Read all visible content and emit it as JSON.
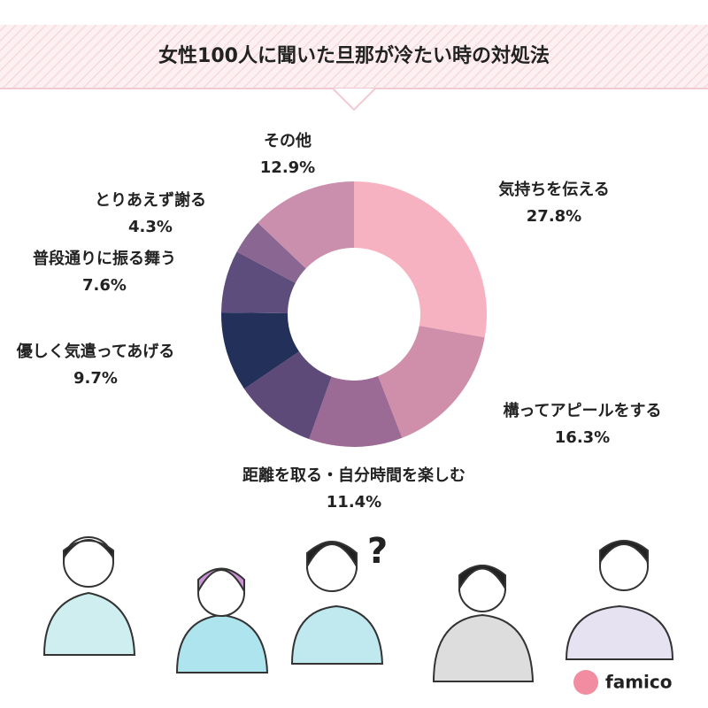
{
  "chart_data": {
    "type": "donut",
    "title": "女性100人に聞いた旦那が冷たい時の対処法",
    "categories": [
      "気持ちを伝える",
      "構ってアピールをする",
      "距離を取る・自分時間を楽しむ",
      null,
      "優しく気遣ってあげる",
      "普段通りに振る舞う",
      "とりあえず謝る",
      "その他"
    ],
    "values": [
      27.8,
      16.3,
      11.4,
      10.0,
      9.7,
      7.6,
      4.3,
      12.9
    ],
    "value_labels": [
      "27.8%",
      "16.3%",
      "11.4%",
      null,
      "9.7%",
      "7.6%",
      "4.3%",
      "12.9%"
    ],
    "colors": [
      "#f7b2c1",
      "#cf8ea9",
      "#9c6b95",
      "#5e4a79",
      "#23305a",
      "#5c4d7c",
      "#8a6692",
      "#cb8fae"
    ]
  },
  "brand": "famico"
}
